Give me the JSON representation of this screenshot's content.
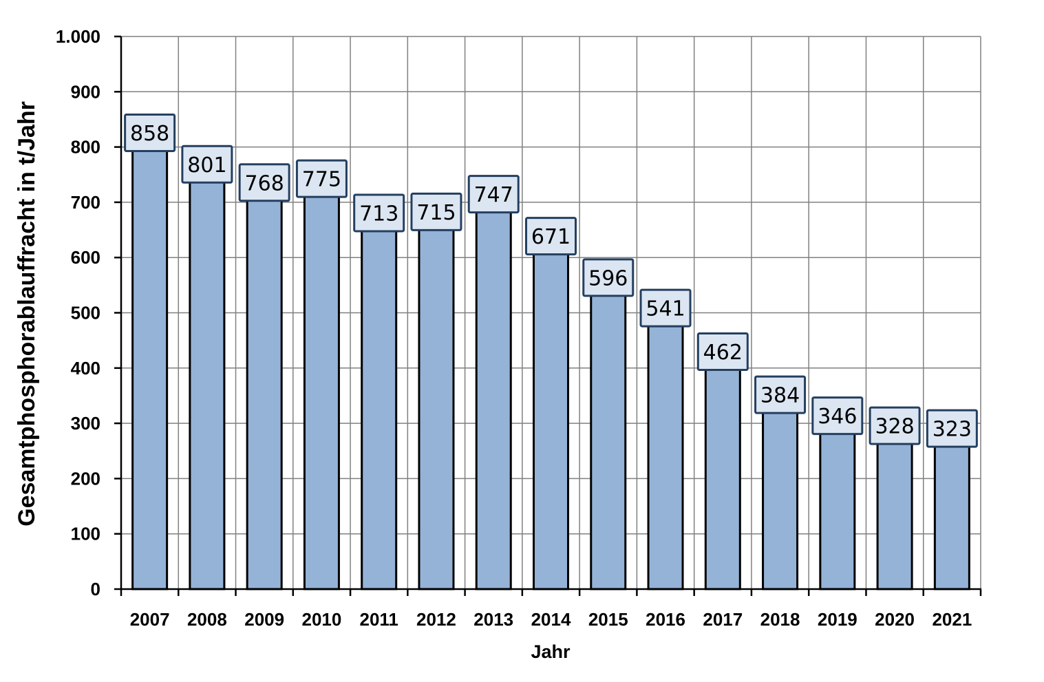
{
  "chart_data": {
    "type": "bar",
    "categories": [
      "2007",
      "2008",
      "2009",
      "2010",
      "2011",
      "2012",
      "2013",
      "2014",
      "2015",
      "2016",
      "2017",
      "2018",
      "2019",
      "2020",
      "2021"
    ],
    "values": [
      858,
      801,
      768,
      775,
      713,
      715,
      747,
      671,
      596,
      541,
      462,
      384,
      346,
      328,
      323
    ],
    "data_labels": [
      "858",
      "801",
      "768",
      "775",
      "713",
      "715",
      "747",
      "671",
      "596",
      "541",
      "462",
      "384",
      "346",
      "328",
      "323"
    ],
    "xlabel": "Jahr",
    "ylabel": "Gesamtphosphorablauffracht in t/Jahr",
    "ylim": [
      0,
      1000
    ],
    "yticks": [
      0,
      100,
      200,
      300,
      400,
      500,
      600,
      700,
      800,
      900,
      1000
    ],
    "ytick_labels": [
      "0",
      "100",
      "200",
      "300",
      "400",
      "500",
      "600",
      "700",
      "800",
      "900",
      "1.000"
    ],
    "grid": true,
    "legend": "none",
    "colors": {
      "bar_fill": "#95B3D7",
      "bar_stroke": "#000000",
      "label_fill": "#DCE6F2",
      "label_stroke": "#243F60",
      "grid": "#808080"
    }
  }
}
